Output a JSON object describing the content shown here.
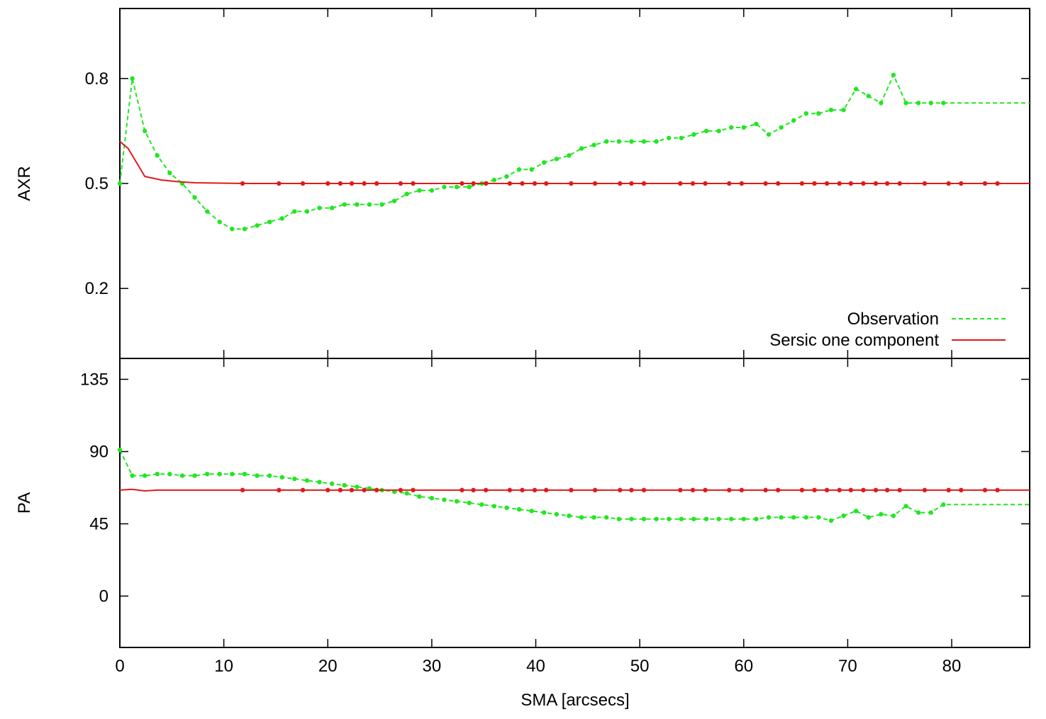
{
  "colors": {
    "observation": "#22e622",
    "model": "#e01a1a",
    "axes": "#000000"
  },
  "chart_data": [
    {
      "type": "line",
      "panel": "top",
      "xlabel": "SMA [arcsecs]",
      "ylabel": "AXR",
      "xlim": [
        0,
        87.5
      ],
      "ylim": [
        0,
        1
      ],
      "xticks": [
        0,
        10,
        20,
        30,
        40,
        50,
        60,
        70,
        80
      ],
      "xtick_labels": [
        "0",
        "10",
        "20",
        "30",
        "40",
        "50",
        "60",
        "70",
        "80"
      ],
      "yticks": [
        0.2,
        0.5,
        0.8
      ],
      "ytick_labels": [
        "0.2",
        "0.5",
        "0.8"
      ],
      "grid": false,
      "legend": {
        "placement": "bottom-right",
        "entries": [
          "Observation",
          "Sersic one component"
        ]
      },
      "series": [
        {
          "name": "Observation",
          "style": "dashed",
          "x": [
            0,
            1.2,
            2.4,
            3.6,
            4.8,
            6,
            7.2,
            8.4,
            9.6,
            10.8,
            12,
            13.2,
            14.4,
            15.6,
            16.8,
            18,
            19.2,
            20.4,
            21.6,
            22.8,
            24,
            25.2,
            26.4,
            27.6,
            28.8,
            30,
            31.2,
            32.4,
            33.6,
            34.8,
            36,
            37.2,
            38.4,
            39.6,
            40.8,
            42,
            43.2,
            44.4,
            45.6,
            46.8,
            48,
            49.2,
            50.4,
            51.6,
            52.8,
            54,
            55.2,
            56.4,
            57.6,
            58.8,
            60,
            61.2,
            62.4,
            63.6,
            64.8,
            66,
            67.2,
            68.4,
            69.6,
            70.8,
            72,
            73.2,
            74.4,
            75.6,
            76.8,
            78,
            79.2,
            87.5
          ],
          "y": [
            0.5,
            0.8,
            0.65,
            0.58,
            0.53,
            0.5,
            0.46,
            0.42,
            0.39,
            0.37,
            0.37,
            0.38,
            0.39,
            0.4,
            0.42,
            0.42,
            0.43,
            0.43,
            0.44,
            0.44,
            0.44,
            0.44,
            0.45,
            0.47,
            0.48,
            0.48,
            0.49,
            0.49,
            0.49,
            0.5,
            0.51,
            0.52,
            0.54,
            0.54,
            0.56,
            0.57,
            0.58,
            0.6,
            0.61,
            0.62,
            0.62,
            0.62,
            0.62,
            0.62,
            0.63,
            0.63,
            0.64,
            0.65,
            0.65,
            0.66,
            0.66,
            0.67,
            0.64,
            0.66,
            0.68,
            0.7,
            0.7,
            0.71,
            0.71,
            0.77,
            0.75,
            0.73,
            0.81,
            0.73,
            0.73,
            0.73,
            0.73,
            0.73
          ]
        },
        {
          "name": "Sersic one component",
          "style": "solid",
          "x": [
            0,
            0.8,
            1.6,
            2.4,
            3.2,
            4,
            5.6,
            7.2,
            9.6,
            12,
            15,
            20,
            30,
            40,
            50,
            60,
            70,
            80,
            87.5
          ],
          "y": [
            0.62,
            0.6,
            0.56,
            0.52,
            0.515,
            0.51,
            0.505,
            0.502,
            0.501,
            0.5,
            0.5,
            0.5,
            0.5,
            0.5,
            0.5,
            0.5,
            0.5,
            0.5,
            0.5
          ],
          "markers_x": [
            11.8,
            15.3,
            17.6,
            20,
            21.2,
            22.3,
            23.5,
            24.7,
            27,
            28.2,
            32.9,
            34,
            35.2,
            37.5,
            38.7,
            39.9,
            41,
            43.4,
            45.7,
            48.1,
            49.2,
            50.4,
            53.9,
            55.1,
            56.3,
            58.6,
            59.8,
            62.1,
            63.3,
            65.6,
            66.8,
            68,
            69.2,
            70.3,
            71.5,
            72.7,
            73.8,
            75,
            77.4,
            79.7,
            80.9,
            83.2,
            84.4
          ]
        }
      ]
    },
    {
      "type": "line",
      "panel": "bottom",
      "xlabel": "SMA [arcsecs]",
      "ylabel": "PA",
      "xlim": [
        0,
        87.5
      ],
      "ylim": [
        -32,
        148
      ],
      "xticks": [
        0,
        10,
        20,
        30,
        40,
        50,
        60,
        70,
        80
      ],
      "xtick_labels": [
        "0",
        "10",
        "20",
        "30",
        "40",
        "50",
        "60",
        "70",
        "80"
      ],
      "yticks": [
        0,
        45,
        90,
        135
      ],
      "ytick_labels": [
        "0",
        "45",
        "90",
        "135"
      ],
      "grid": false,
      "series": [
        {
          "name": "Observation",
          "style": "dashed",
          "x": [
            0,
            1.2,
            2.4,
            3.6,
            4.8,
            6,
            7.2,
            8.4,
            9.6,
            10.8,
            12,
            13.2,
            14.4,
            15.6,
            16.8,
            18,
            19.2,
            20.4,
            21.6,
            22.8,
            24,
            25.2,
            26.4,
            27.6,
            28.8,
            30,
            31.2,
            32.4,
            33.6,
            34.8,
            36,
            37.2,
            38.4,
            39.6,
            40.8,
            42,
            43.2,
            44.4,
            45.6,
            46.8,
            48,
            49.2,
            50.4,
            51.6,
            52.8,
            54,
            55.2,
            56.4,
            57.6,
            58.8,
            60,
            61.2,
            62.4,
            63.6,
            64.8,
            66,
            67.2,
            68.4,
            69.6,
            70.8,
            72,
            73.2,
            74.4,
            75.6,
            76.8,
            78,
            79.2,
            87.5
          ],
          "y": [
            91,
            75,
            75,
            76,
            76,
            75,
            75,
            76,
            76,
            76,
            76,
            75,
            75,
            74,
            73,
            72,
            71,
            70,
            69,
            68,
            67,
            66,
            65,
            64,
            62,
            61,
            60,
            59,
            58,
            57,
            56,
            55,
            54,
            53,
            52,
            51,
            50,
            49,
            49,
            49,
            48,
            48,
            48,
            48,
            48,
            48,
            48,
            48,
            48,
            48,
            48,
            48,
            49,
            49,
            49,
            49,
            49,
            47,
            50,
            53,
            49,
            51,
            50,
            56,
            52,
            52,
            57,
            57
          ]
        },
        {
          "name": "Sersic one component",
          "style": "solid",
          "x": [
            0,
            1.2,
            2.4,
            3.6,
            5,
            10,
            20,
            30,
            40,
            50,
            60,
            70,
            80,
            87.5
          ],
          "y": [
            66,
            66.5,
            65.5,
            66,
            66,
            66,
            66,
            66,
            66,
            66,
            66,
            66,
            66,
            66
          ],
          "markers_x": [
            11.8,
            15.3,
            17.6,
            20,
            21.2,
            22.3,
            23.5,
            24.7,
            27,
            28.2,
            32.9,
            34,
            35.2,
            37.5,
            38.7,
            39.9,
            41,
            43.4,
            45.7,
            48.1,
            49.2,
            50.4,
            53.9,
            55.1,
            56.3,
            58.6,
            59.8,
            62.1,
            63.3,
            65.6,
            66.8,
            68,
            69.2,
            70.3,
            71.5,
            72.7,
            73.8,
            75,
            77.4,
            79.7,
            80.9,
            83.2,
            84.4
          ]
        }
      ]
    }
  ]
}
